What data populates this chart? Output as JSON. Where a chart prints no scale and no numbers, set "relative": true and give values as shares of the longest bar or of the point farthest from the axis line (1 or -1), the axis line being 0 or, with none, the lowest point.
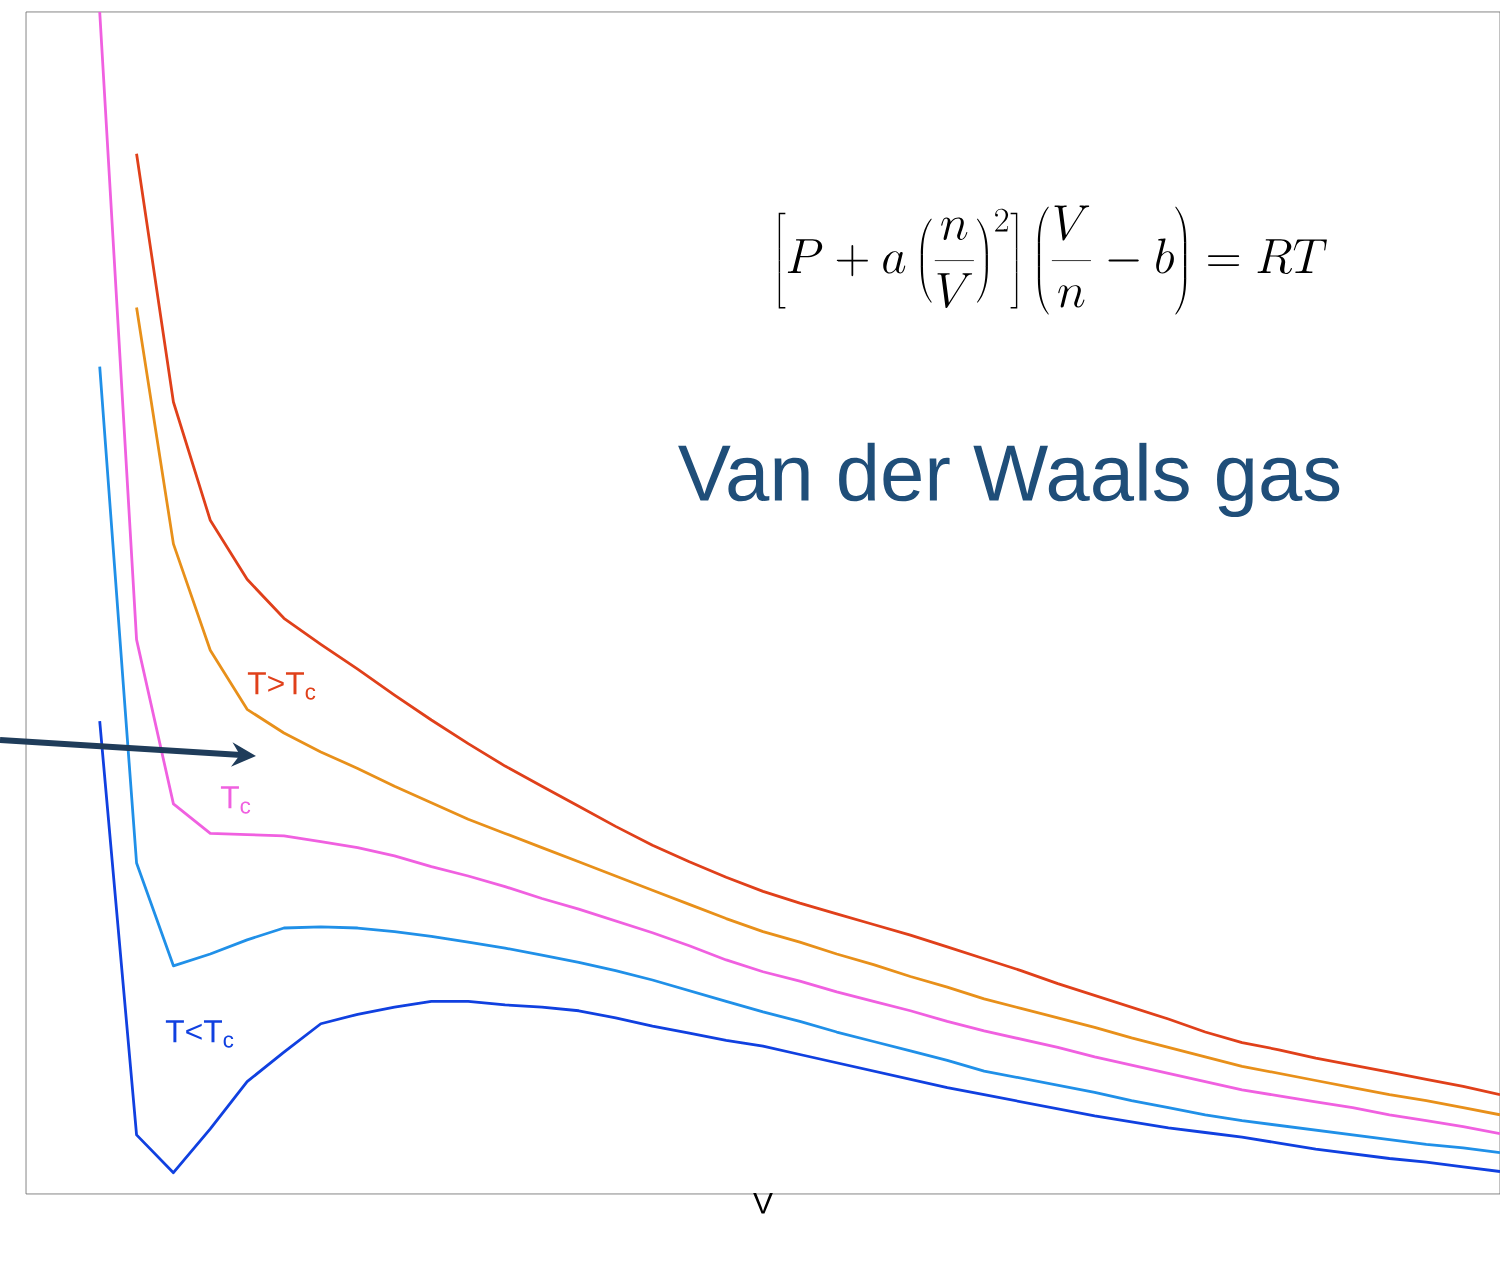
{
  "chart_data": {
    "type": "line",
    "relative": true,
    "xlabel": "V",
    "categories": [
      null,
      null,
      null,
      null,
      null,
      null,
      null,
      null,
      null,
      null,
      null,
      null,
      null,
      null,
      null,
      null,
      null,
      null,
      null,
      null,
      null,
      null,
      null,
      null,
      null,
      null,
      null,
      null,
      null,
      null,
      null,
      null,
      null,
      null,
      null,
      null,
      null,
      null,
      null,
      null,
      null
    ],
    "series": [
      {
        "color": "#e0401a",
        "values": [
          null,
          null,
          null,
          0.88,
          0.67,
          0.57,
          0.52,
          0.487,
          0.465,
          0.444,
          0.422,
          0.401,
          0.381,
          0.362,
          0.345,
          0.328,
          0.311,
          0.295,
          0.281,
          0.268,
          0.256,
          0.246,
          0.237,
          0.228,
          0.219,
          0.209,
          0.199,
          0.189,
          0.178,
          0.168,
          0.158,
          0.148,
          0.137,
          0.128,
          0.122,
          0.115,
          0.109,
          0.103,
          0.097,
          0.091,
          0.084
        ]
      },
      {
        "color": "#e8901a",
        "values": [
          null,
          null,
          null,
          0.75,
          0.55,
          0.46,
          0.41,
          0.39,
          0.374,
          0.36,
          0.345,
          0.331,
          0.317,
          0.305,
          0.293,
          0.281,
          0.269,
          0.257,
          0.245,
          0.233,
          0.222,
          0.213,
          0.203,
          0.194,
          0.184,
          0.175,
          0.165,
          0.157,
          0.149,
          0.141,
          0.132,
          0.124,
          0.116,
          0.108,
          0.102,
          0.096,
          0.09,
          0.084,
          0.079,
          0.073,
          0.067
        ]
      },
      {
        "color": "#f060e0",
        "values": [
          null,
          null,
          1.0,
          0.469,
          0.33,
          0.305,
          0.304,
          0.303,
          0.298,
          0.293,
          0.286,
          0.277,
          0.269,
          0.26,
          0.25,
          0.241,
          0.231,
          0.221,
          0.21,
          0.198,
          0.188,
          0.18,
          0.171,
          0.163,
          0.155,
          0.146,
          0.138,
          0.131,
          0.124,
          0.116,
          0.109,
          0.102,
          0.095,
          0.088,
          0.083,
          0.078,
          0.073,
          0.067,
          0.062,
          0.057,
          0.051
        ]
      },
      {
        "color": "#2090e8",
        "values": [
          null,
          null,
          0.7,
          0.28,
          0.193,
          0.203,
          0.215,
          0.225,
          0.226,
          0.225,
          0.222,
          0.218,
          0.213,
          0.208,
          0.202,
          0.196,
          0.189,
          0.181,
          0.172,
          0.163,
          0.154,
          0.146,
          0.137,
          0.129,
          0.121,
          0.113,
          0.104,
          0.098,
          0.092,
          0.086,
          0.079,
          0.073,
          0.067,
          0.062,
          0.058,
          0.054,
          0.05,
          0.046,
          0.042,
          0.039,
          0.035
        ]
      },
      {
        "color": "#1040e0",
        "values": [
          null,
          null,
          0.4,
          0.05,
          0.018,
          0.055,
          0.095,
          0.12,
          0.144,
          0.152,
          0.158,
          0.163,
          0.163,
          0.16,
          0.158,
          0.155,
          0.149,
          0.142,
          0.136,
          0.13,
          0.125,
          0.118,
          0.111,
          0.104,
          0.097,
          0.09,
          0.084,
          0.078,
          0.072,
          0.066,
          0.061,
          0.056,
          0.052,
          0.048,
          0.043,
          0.038,
          0.034,
          0.03,
          0.027,
          0.023,
          0.019
        ]
      }
    ],
    "annotations": [
      "\\left[P+a\\left(\\frac{n}{V}\\right)^{2}\\right]\\left(\\frac{V}{n}-b\\right)=RT",
      "Van der Waals gas",
      "T>T$_{c}$",
      "T$_{c}$",
      "T<T$_{c}$"
    ]
  }
}
